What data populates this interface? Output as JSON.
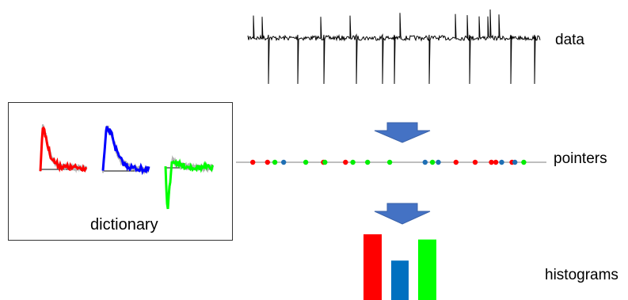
{
  "labels": {
    "data": "data",
    "pointers": "pointers",
    "histograms": "histograms",
    "dictionary": "dictionary"
  },
  "colors": {
    "atom_red": "#ff0000",
    "atom_blue": "#0000ff",
    "atom_green": "#00ff00",
    "noise_gray": "#b3b3b3",
    "arrow": "#4472c4",
    "dot_red": "#ff0000",
    "dot_blue": "#1f6fb4",
    "dot_green": "#00ee00",
    "bar_red": "#ff0000",
    "bar_blue": "#0070c0",
    "bar_green": "#00ff00",
    "axis": "#7f7f7f"
  },
  "pointers": [
    {
      "t": 0.03,
      "type": "red"
    },
    {
      "t": 0.08,
      "type": "red"
    },
    {
      "t": 0.105,
      "type": "green"
    },
    {
      "t": 0.135,
      "type": "blue"
    },
    {
      "t": 0.21,
      "type": "green"
    },
    {
      "t": 0.27,
      "type": "red"
    },
    {
      "t": 0.275,
      "type": "green"
    },
    {
      "t": 0.345,
      "type": "red"
    },
    {
      "t": 0.37,
      "type": "green"
    },
    {
      "t": 0.42,
      "type": "green"
    },
    {
      "t": 0.495,
      "type": "green"
    },
    {
      "t": 0.615,
      "type": "blue"
    },
    {
      "t": 0.64,
      "type": "green"
    },
    {
      "t": 0.66,
      "type": "blue"
    },
    {
      "t": 0.72,
      "type": "red"
    },
    {
      "t": 0.785,
      "type": "red"
    },
    {
      "t": 0.84,
      "type": "red"
    },
    {
      "t": 0.855,
      "type": "red"
    },
    {
      "t": 0.875,
      "type": "blue"
    },
    {
      "t": 0.91,
      "type": "red"
    },
    {
      "t": 0.92,
      "type": "blue"
    },
    {
      "t": 0.95,
      "type": "green"
    }
  ],
  "histogram": [
    {
      "type": "red",
      "value": 1.0
    },
    {
      "type": "blue",
      "value": 0.6
    },
    {
      "type": "green",
      "value": 0.92
    }
  ],
  "data_spikes": {
    "down": [
      0.07,
      0.17,
      0.26,
      0.37,
      0.46,
      0.5,
      0.62,
      0.76,
      0.9,
      0.98
    ],
    "up": [
      0.02,
      0.05,
      0.25,
      0.35,
      0.52,
      0.71,
      0.75,
      0.79,
      0.82,
      0.83,
      0.86
    ]
  }
}
